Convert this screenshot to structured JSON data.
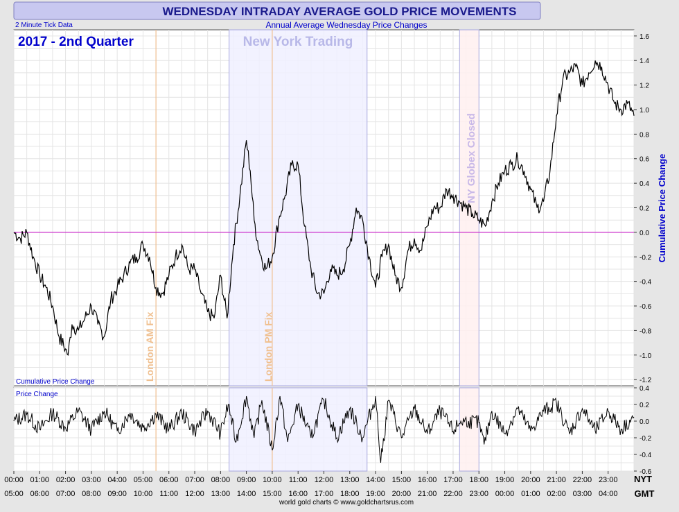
{
  "header": {
    "title": "WEDNESDAY INTRADAY AVERAGE GOLD PRICE MOVEMENTS",
    "subtitle": "Annual Average Wednesday Price Changes",
    "tick_note": "2 Minute Tick Data",
    "period": "2017 - 2nd Quarter",
    "footer": "world gold charts © www.goldchartsrus.com"
  },
  "annotations": {
    "ny_trading": "New York Trading",
    "london_am": "London AM Fix",
    "london_pm": "London PM Fix",
    "globex_closed": "NY Globex Closed"
  },
  "axes": {
    "x_nyt_label": "NYT",
    "x_gmt_label": "GMT",
    "top_ylabel": "Cumulative Price Change",
    "bottom_ylabel": "Price Change"
  },
  "colors": {
    "title": "#1a1a8c",
    "text_blue": "#0000cc",
    "zero_line": "#cc33cc",
    "fix_line": "#f0c090",
    "ny_band": "#f0f0ff",
    "globex_band": "#fff0f0"
  },
  "chart_data": [
    {
      "type": "line",
      "name": "cumulative",
      "title": "",
      "ylabel": "Cumulative Price Change",
      "xlim": [
        0,
        24
      ],
      "ylim": [
        -1.25,
        1.65
      ],
      "y_ticks": [
        1.6,
        1.4,
        1.2,
        1.0,
        0.8,
        0.6,
        0.4,
        0.2,
        0.0,
        -0.2,
        -0.4,
        -0.6,
        -0.8,
        -1.0,
        -1.2
      ],
      "y_tick_labels": [
        "1.6",
        "1.4",
        "1.2",
        "1.0",
        "0.8",
        "0.6",
        "0.4",
        "0.2",
        "0.0",
        "-0.2",
        "-0.4",
        "-0.6",
        "-0.8",
        "-1.0",
        "-1.2"
      ],
      "x_ticks_nyt": [
        "00:00",
        "01:00",
        "02:00",
        "03:00",
        "04:00",
        "05:00",
        "06:00",
        "07:00",
        "08:00",
        "09:00",
        "10:00",
        "11:00",
        "12:00",
        "13:00",
        "14:00",
        "15:00",
        "16:00",
        "17:00",
        "18:00",
        "19:00",
        "20:00",
        "21:00",
        "22:00",
        "23:00"
      ],
      "x_ticks_gmt": [
        "05:00",
        "06:00",
        "07:00",
        "08:00",
        "09:00",
        "10:00",
        "11:00",
        "12:00",
        "13:00",
        "14:00",
        "15:00",
        "16:00",
        "17:00",
        "18:00",
        "19:00",
        "20:00",
        "21:00",
        "22:00",
        "23:00",
        "00:00",
        "01:00",
        "02:00",
        "03:00",
        "04:00"
      ],
      "bands": [
        {
          "from": 8.33,
          "to": 13.67,
          "label": "New York Trading"
        },
        {
          "from": 17.25,
          "to": 18.0,
          "label": "NY Globex Closed"
        }
      ],
      "vlines": [
        {
          "x": 5.5,
          "label": "London AM Fix"
        },
        {
          "x": 10.0,
          "label": "London PM Fix"
        }
      ],
      "x": [
        0.0,
        0.25,
        0.5,
        0.75,
        1.0,
        1.25,
        1.5,
        1.75,
        2.0,
        2.1,
        2.25,
        2.5,
        2.75,
        3.0,
        3.25,
        3.5,
        3.75,
        4.0,
        4.25,
        4.5,
        4.75,
        5.0,
        5.25,
        5.5,
        5.75,
        6.0,
        6.25,
        6.5,
        6.75,
        7.0,
        7.25,
        7.5,
        7.75,
        8.0,
        8.25,
        8.5,
        8.75,
        9.0,
        9.15,
        9.3,
        9.5,
        9.75,
        10.0,
        10.25,
        10.5,
        10.75,
        11.0,
        11.25,
        11.5,
        11.75,
        12.0,
        12.25,
        12.5,
        12.75,
        13.0,
        13.25,
        13.5,
        13.75,
        14.0,
        14.25,
        14.5,
        14.75,
        15.0,
        15.25,
        15.5,
        15.75,
        16.0,
        16.25,
        16.5,
        16.75,
        17.0,
        17.25,
        17.5,
        17.75,
        18.0,
        18.25,
        18.5,
        18.75,
        19.0,
        19.25,
        19.5,
        19.75,
        20.0,
        20.25,
        20.5,
        20.75,
        21.0,
        21.25,
        21.5,
        21.75,
        22.0,
        22.25,
        22.5,
        22.75,
        23.0,
        23.25,
        23.5,
        23.75,
        24.0
      ],
      "y": [
        0.0,
        -0.05,
        0.0,
        -0.2,
        -0.35,
        -0.45,
        -0.6,
        -0.85,
        -0.95,
        -1.0,
        -0.75,
        -0.8,
        -0.7,
        -0.6,
        -0.75,
        -0.85,
        -0.55,
        -0.45,
        -0.35,
        -0.25,
        -0.2,
        -0.1,
        -0.2,
        -0.45,
        -0.5,
        -0.35,
        -0.2,
        -0.1,
        -0.3,
        -0.3,
        -0.5,
        -0.65,
        -0.7,
        -0.35,
        -0.7,
        -0.1,
        0.3,
        0.75,
        0.5,
        0.1,
        -0.15,
        -0.3,
        -0.2,
        0.1,
        0.3,
        0.55,
        0.55,
        0.05,
        -0.3,
        -0.5,
        -0.5,
        -0.3,
        -0.35,
        -0.3,
        -0.1,
        0.2,
        0.1,
        -0.2,
        -0.45,
        -0.2,
        -0.1,
        -0.35,
        -0.45,
        -0.15,
        -0.05,
        -0.15,
        0.05,
        0.2,
        0.2,
        0.35,
        0.3,
        0.25,
        0.2,
        0.15,
        0.1,
        0.05,
        0.25,
        0.4,
        0.5,
        0.55,
        0.6,
        0.5,
        0.35,
        0.2,
        0.25,
        0.5,
        0.95,
        1.25,
        1.3,
        1.35,
        1.2,
        1.3,
        1.4,
        1.35,
        1.2,
        1.05,
        1.0,
        1.05,
        0.95
      ]
    },
    {
      "type": "line",
      "name": "price_change",
      "title": "",
      "ylabel": "Price Change",
      "xlim": [
        0,
        24
      ],
      "ylim": [
        -0.6,
        0.4
      ],
      "y_ticks": [
        0.4,
        0.2,
        0.0,
        -0.2,
        -0.4,
        -0.6
      ],
      "y_tick_labels": [
        "0.4",
        "0.2",
        "0.0",
        "-0.2",
        "-0.4",
        "-0.6"
      ],
      "x": [
        0.0,
        0.5,
        1.0,
        1.5,
        2.0,
        2.5,
        3.0,
        3.5,
        4.0,
        4.5,
        5.0,
        5.5,
        6.0,
        6.5,
        7.0,
        7.5,
        8.0,
        8.3,
        8.6,
        9.0,
        9.3,
        9.6,
        10.0,
        10.3,
        10.6,
        11.0,
        11.5,
        12.0,
        12.5,
        13.0,
        13.5,
        14.0,
        14.2,
        14.5,
        15.0,
        15.5,
        16.0,
        16.5,
        17.0,
        17.3,
        17.6,
        18.0,
        18.2,
        18.5,
        19.0,
        19.5,
        20.0,
        20.5,
        21.0,
        21.5,
        22.0,
        22.5,
        23.0,
        23.5,
        24.0
      ],
      "y": [
        0.0,
        0.08,
        -0.1,
        0.1,
        -0.08,
        0.12,
        -0.1,
        0.12,
        -0.12,
        0.1,
        -0.08,
        0.08,
        -0.1,
        0.1,
        -0.12,
        0.12,
        -0.15,
        0.2,
        -0.25,
        0.3,
        -0.2,
        0.25,
        -0.35,
        0.3,
        -0.25,
        0.2,
        -0.2,
        0.25,
        -0.2,
        0.15,
        -0.2,
        0.3,
        -0.5,
        0.25,
        -0.2,
        0.15,
        -0.15,
        0.12,
        -0.12,
        0.0,
        0.0,
        -0.02,
        -0.28,
        0.12,
        -0.15,
        0.15,
        -0.12,
        0.12,
        0.22,
        -0.15,
        0.15,
        -0.12,
        0.12,
        -0.1,
        0.05
      ]
    }
  ]
}
